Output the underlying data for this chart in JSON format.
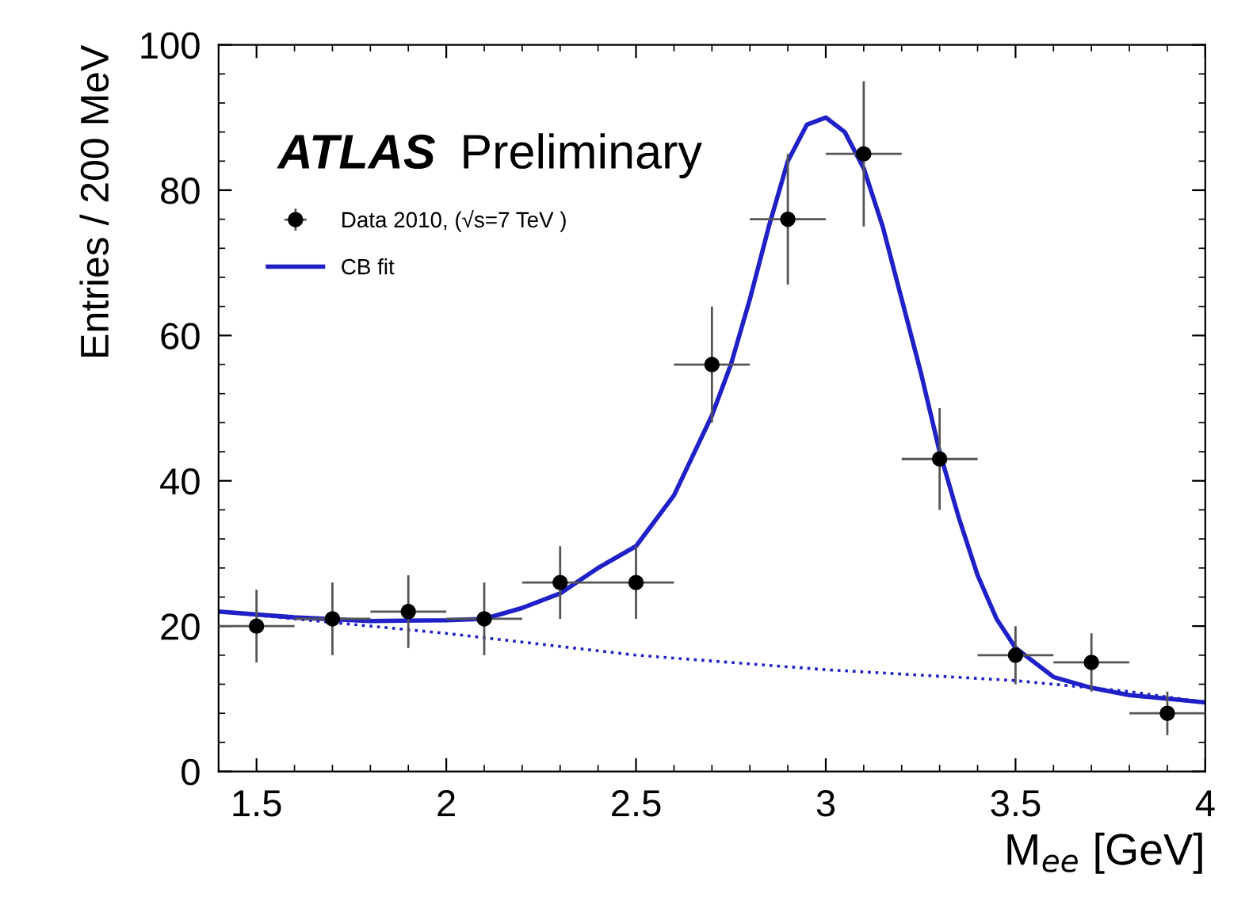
{
  "chart_data": {
    "type": "scatter",
    "xlabel": "M$_{ee}$ [GeV]",
    "ylabel": "Entries / 200 MeV",
    "annotations": [
      "ATLAS",
      "Preliminary"
    ],
    "xlim": [
      1.4,
      4
    ],
    "xticks": [
      1.5,
      2,
      2.5,
      3,
      3.5,
      4
    ],
    "ylim": [
      0,
      100
    ],
    "yticks": [
      0,
      20,
      40,
      60,
      80,
      100
    ],
    "legend": "top left",
    "grid": false,
    "series": [
      {
        "name": "Data 2010, (√s=7 TeV )",
        "color": "#000000",
        "marker": "circle",
        "x": [
          1.5,
          1.7,
          1.9,
          2.1,
          2.3,
          2.5,
          2.7,
          2.9,
          3.1,
          3.3,
          3.5,
          3.7,
          3.9
        ],
        "values": [
          20,
          21,
          22,
          21,
          26,
          26,
          56,
          76,
          85,
          43,
          16,
          15,
          8
        ],
        "errors": [
          5,
          5,
          5,
          5,
          5,
          5,
          8,
          9,
          10,
          7,
          4,
          4,
          3
        ],
        "xerrors": [
          0.1,
          0.1,
          0.1,
          0.1,
          0.1,
          0.1,
          0.1,
          0.1,
          0.1,
          0.1,
          0.1,
          0.1,
          0.1
        ]
      },
      {
        "name": "CB fit",
        "type": "line",
        "color": "#2020c8",
        "line_style": "solid",
        "x": [
          1.4,
          1.6,
          1.8,
          2.0,
          2.1,
          2.2,
          2.3,
          2.4,
          2.5,
          2.6,
          2.7,
          2.75,
          2.8,
          2.85,
          2.9,
          2.95,
          3.0,
          3.05,
          3.1,
          3.15,
          3.2,
          3.25,
          3.3,
          3.35,
          3.4,
          3.45,
          3.5,
          3.6,
          3.7,
          3.8,
          3.9,
          4.0
        ],
        "values": [
          22,
          21.2,
          20.7,
          20.8,
          21,
          22.5,
          24.5,
          28,
          31,
          38,
          49,
          56,
          65,
          75,
          84,
          89,
          90,
          88,
          83,
          75,
          65,
          55,
          44,
          35,
          27,
          21,
          17,
          13,
          11.5,
          10.5,
          10,
          9.5
        ]
      },
      {
        "type": "line",
        "color": "#2020c8",
        "line_style": "dotted",
        "x": [
          1.4,
          1.7,
          2.0,
          2.5,
          3.0,
          3.5,
          3.8,
          4.0
        ],
        "values": [
          22,
          20.5,
          19,
          16,
          14,
          12.5,
          11,
          9.5
        ]
      }
    ]
  }
}
